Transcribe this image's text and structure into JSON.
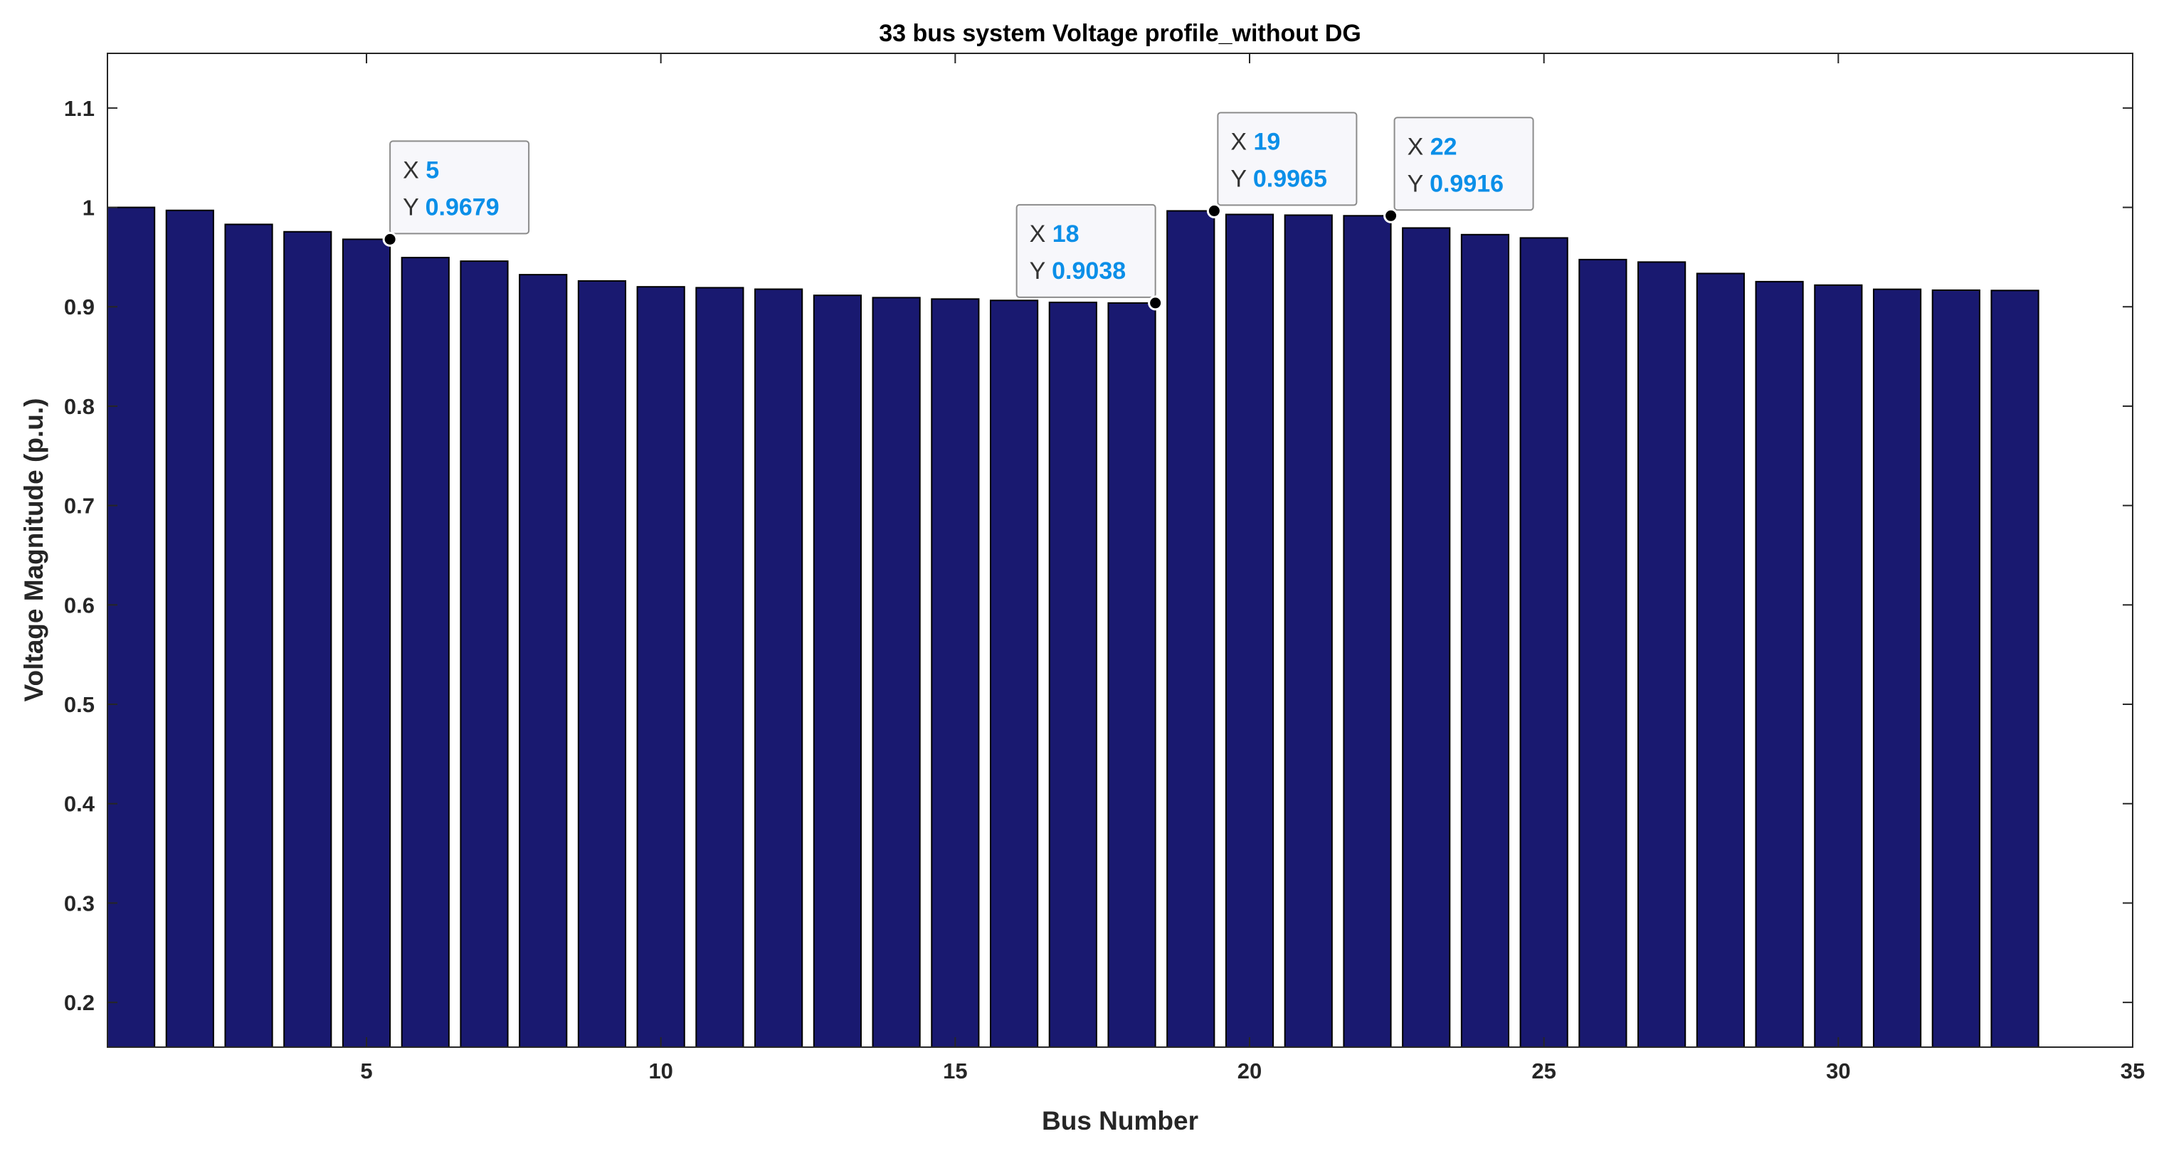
{
  "chart_data": {
    "type": "bar",
    "title": "33 bus system Voltage profile_without DG",
    "xlabel": "Bus Number",
    "ylabel": "Voltage Magnitude (p.u.)",
    "xlim": [
      0.6,
      35
    ],
    "ylim": [
      0.155,
      1.155
    ],
    "xticks": [
      5,
      10,
      15,
      20,
      25,
      30,
      35
    ],
    "yticks": [
      0.2,
      0.3,
      0.4,
      0.5,
      0.6,
      0.7,
      0.8,
      0.9,
      1,
      1.1
    ],
    "ytick_labels": [
      "0.2",
      "0.3",
      "0.4",
      "0.5",
      "0.6",
      "0.7",
      "0.8",
      "0.9",
      "1",
      "1.1"
    ],
    "bar_color": "#191970",
    "tip_value_color": "#0b8fe8",
    "x": [
      1,
      2,
      3,
      4,
      5,
      6,
      7,
      8,
      9,
      10,
      11,
      12,
      13,
      14,
      15,
      16,
      17,
      18,
      19,
      20,
      21,
      22,
      23,
      24,
      25,
      26,
      27,
      28,
      29,
      30,
      31,
      32,
      33
    ],
    "values": [
      1.0,
      0.997,
      0.9829,
      0.9755,
      0.9679,
      0.9495,
      0.9459,
      0.9323,
      0.926,
      0.9201,
      0.9192,
      0.9177,
      0.9115,
      0.9092,
      0.9078,
      0.9064,
      0.9044,
      0.9038,
      0.9965,
      0.9929,
      0.9922,
      0.9916,
      0.9793,
      0.9726,
      0.9693,
      0.9475,
      0.945,
      0.9335,
      0.9253,
      0.9218,
      0.9176,
      0.9167,
      0.9164
    ],
    "datatips": [
      {
        "x_key": "X",
        "x_val": "5",
        "y_key": "Y",
        "y_val": "0.9679",
        "bus": 5,
        "value": 0.9679
      },
      {
        "x_key": "X",
        "x_val": "18",
        "y_key": "Y",
        "y_val": "0.9038",
        "bus": 18,
        "value": 0.9038
      },
      {
        "x_key": "X",
        "x_val": "19",
        "y_key": "Y",
        "y_val": "0.9965",
        "bus": 19,
        "value": 0.9965
      },
      {
        "x_key": "X",
        "x_val": "22",
        "y_key": "Y",
        "y_val": "0.9916",
        "bus": 22,
        "value": 0.9916
      }
    ]
  }
}
